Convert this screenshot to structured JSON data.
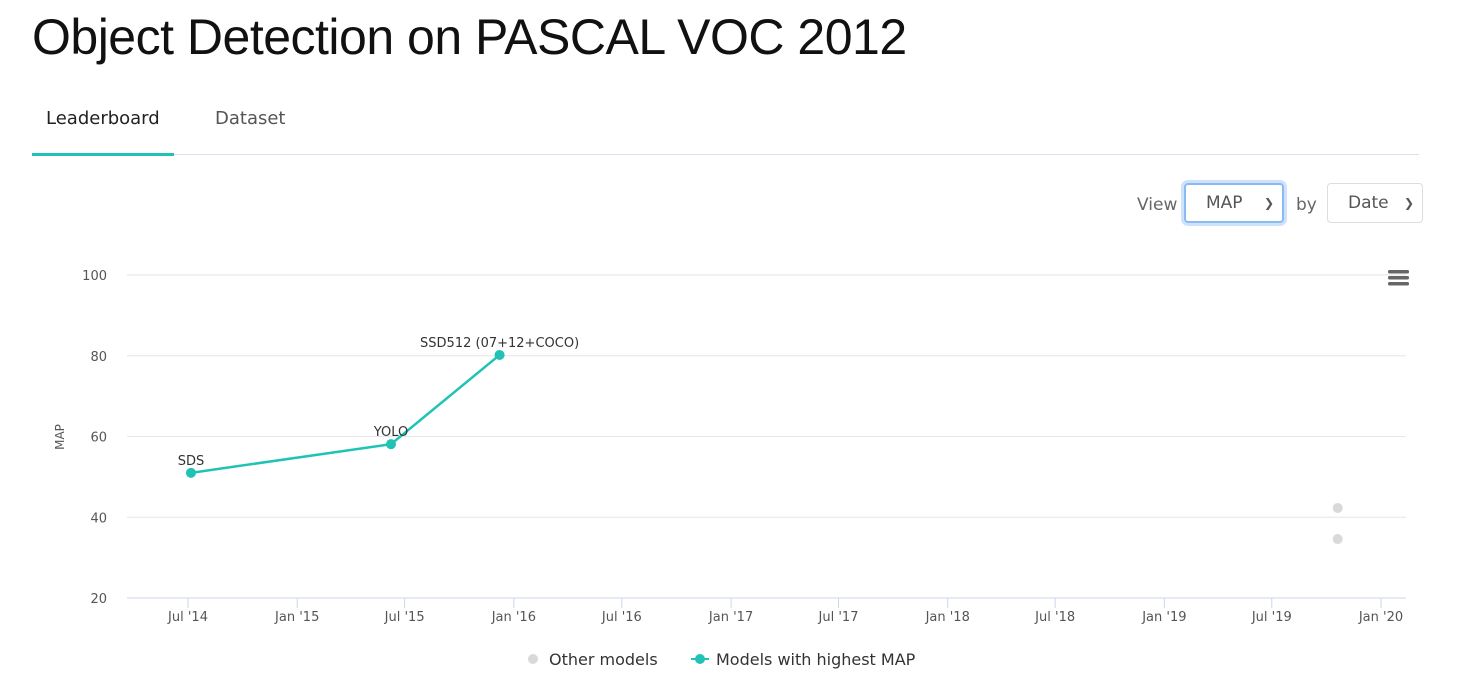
{
  "page_title": "Object Detection on PASCAL VOC 2012",
  "tabs": [
    {
      "label": "Leaderboard",
      "active": true
    },
    {
      "label": "Dataset",
      "active": false
    }
  ],
  "controls": {
    "view_label": "View",
    "view_value": "MAP",
    "by_label": "by",
    "by_value": "Date"
  },
  "colors": {
    "accent": "#21c2b6",
    "other": "#d9d9d9"
  },
  "chart_data": {
    "type": "line",
    "ylabel": "MAP",
    "ylim": [
      20,
      100
    ],
    "yticks": [
      20,
      40,
      60,
      80,
      100
    ],
    "xlim": [
      "2014-04-01",
      "2020-02-01"
    ],
    "xticks": [
      {
        "date": "2014-07-01",
        "label": "Jul '14"
      },
      {
        "date": "2015-01-01",
        "label": "Jan '15"
      },
      {
        "date": "2015-07-01",
        "label": "Jul '15"
      },
      {
        "date": "2016-01-01",
        "label": "Jan '16"
      },
      {
        "date": "2016-07-01",
        "label": "Jul '16"
      },
      {
        "date": "2017-01-01",
        "label": "Jan '17"
      },
      {
        "date": "2017-07-01",
        "label": "Jul '17"
      },
      {
        "date": "2018-01-01",
        "label": "Jan '18"
      },
      {
        "date": "2018-07-01",
        "label": "Jul '18"
      },
      {
        "date": "2019-01-01",
        "label": "Jan '19"
      },
      {
        "date": "2019-07-01",
        "label": "Jul '19"
      },
      {
        "date": "2020-01-01",
        "label": "Jan '20"
      }
    ],
    "grid": true,
    "legend_position": "bottom",
    "series": [
      {
        "name": "Other models",
        "type": "scatter",
        "color": "#d9d9d9",
        "points": [
          {
            "x": "2019-10-20",
            "y": 42.3
          },
          {
            "x": "2019-10-20",
            "y": 34.6
          }
        ]
      },
      {
        "name": "Models with highest MAP",
        "type": "line",
        "color": "#21c2b6",
        "points": [
          {
            "x": "2014-07-06",
            "y": 51.0,
            "label": "SDS"
          },
          {
            "x": "2015-06-08",
            "y": 58.1,
            "label": "YOLO"
          },
          {
            "x": "2015-12-08",
            "y": 80.2,
            "label": "SSD512 (07+12+COCO)"
          }
        ]
      }
    ]
  }
}
